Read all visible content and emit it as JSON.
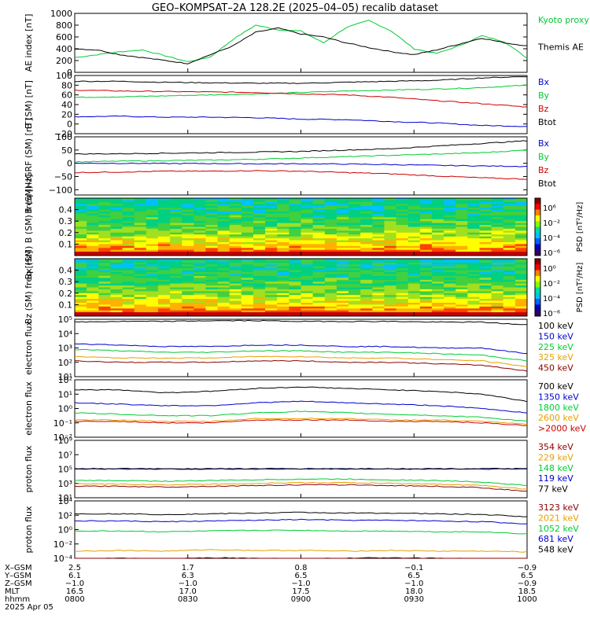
{
  "title": "GEO–KOMPSAT–2A 128.2E (2025–04–05) recalib dataset",
  "colors": {
    "black": "#000000",
    "blue": "#0000d0",
    "green": "#00cc33",
    "red": "#cc0000",
    "orange": "#e8a000",
    "darkred": "#8b0000"
  },
  "x_axis": {
    "row_labels": [
      "X–GSM",
      "Y–GSM",
      "Z–GSM",
      "MLT",
      "hhmm",
      "2025 Apr 05"
    ],
    "columns": [
      {
        "x_gsm": "2.5",
        "y_gsm": "6.1",
        "z_gsm": "−1.0",
        "mlt": "16.5",
        "hhmm": "0800"
      },
      {
        "x_gsm": "1.7",
        "y_gsm": "6.3",
        "z_gsm": "−1.0",
        "mlt": "17.0",
        "hhmm": "0830"
      },
      {
        "x_gsm": "0.8",
        "y_gsm": "6.5",
        "z_gsm": "−1.0",
        "mlt": "17.5",
        "hhmm": "0900"
      },
      {
        "x_gsm": "−0.1",
        "y_gsm": "6.5",
        "z_gsm": "−1.0",
        "mlt": "18.0",
        "hhmm": "0930"
      },
      {
        "x_gsm": "−0.9",
        "y_gsm": "6.5",
        "z_gsm": "−0.9",
        "mlt": "18.5",
        "hhmm": "1000"
      }
    ]
  },
  "chart_data": [
    {
      "type": "line",
      "ylabel": "AE index [nT]",
      "ylim": [
        0,
        1000
      ],
      "y_ticks": [
        0,
        200,
        400,
        600,
        800,
        1000
      ],
      "x": [
        0,
        0.05,
        0.1,
        0.15,
        0.2,
        0.25,
        0.3,
        0.35,
        0.4,
        0.45,
        0.5,
        0.55,
        0.6,
        0.65,
        0.7,
        0.75,
        0.8,
        0.85,
        0.9,
        0.95,
        1
      ],
      "series": [
        {
          "name": "Kyoto proxy AE",
          "color": "green",
          "values": [
            250,
            300,
            350,
            380,
            280,
            180,
            260,
            560,
            800,
            720,
            700,
            500,
            760,
            880,
            700,
            400,
            320,
            450,
            620,
            520,
            240
          ]
        },
        {
          "name": "Themis AE",
          "color": "black",
          "values": [
            400,
            380,
            300,
            250,
            200,
            150,
            300,
            450,
            680,
            750,
            650,
            600,
            500,
            420,
            350,
            300,
            380,
            480,
            580,
            500,
            450
          ]
        }
      ]
    },
    {
      "type": "line",
      "ylabel": "B (SM) [nT]",
      "ylim": [
        -20,
        100
      ],
      "y_ticks": [
        -20,
        0,
        20,
        40,
        60,
        80,
        100
      ],
      "x": [
        0,
        0.1,
        0.2,
        0.3,
        0.4,
        0.5,
        0.6,
        0.7,
        0.8,
        0.9,
        1
      ],
      "series": [
        {
          "name": "Bx",
          "color": "blue",
          "values": [
            15,
            16,
            14,
            14,
            13,
            10,
            9,
            5,
            2,
            -3,
            -5
          ]
        },
        {
          "name": "By",
          "color": "green",
          "values": [
            55,
            56,
            58,
            60,
            62,
            65,
            68,
            70,
            72,
            75,
            80
          ]
        },
        {
          "name": "Bz",
          "color": "red",
          "values": [
            70,
            68,
            67,
            66,
            65,
            62,
            60,
            55,
            48,
            42,
            35
          ]
        },
        {
          "name": "Btot",
          "color": "black",
          "values": [
            88,
            88,
            86,
            85,
            84,
            84,
            86,
            88,
            90,
            95,
            98
          ]
        }
      ]
    },
    {
      "type": "line",
      "ylabel": "B (SM)–IGRF (SM) [nT]",
      "ylim": [
        -120,
        100
      ],
      "y_ticks": [
        -100,
        -50,
        0,
        50,
        100
      ],
      "x": [
        0,
        0.1,
        0.2,
        0.3,
        0.4,
        0.5,
        0.6,
        0.7,
        0.8,
        0.9,
        1
      ],
      "series": [
        {
          "name": "Bx",
          "color": "blue",
          "values": [
            0,
            0,
            -1,
            -1,
            -2,
            -2,
            -3,
            -5,
            -8,
            -10,
            -12
          ]
        },
        {
          "name": "By",
          "color": "green",
          "values": [
            5,
            8,
            10,
            12,
            15,
            20,
            25,
            30,
            35,
            40,
            50
          ]
        },
        {
          "name": "Bz",
          "color": "red",
          "values": [
            -35,
            -33,
            -30,
            -30,
            -28,
            -30,
            -35,
            -40,
            -48,
            -55,
            -60
          ]
        },
        {
          "name": "Btot",
          "color": "black",
          "values": [
            35,
            36,
            38,
            40,
            42,
            45,
            50,
            55,
            65,
            75,
            85
          ]
        }
      ]
    },
    {
      "type": "heatmap",
      "ylabel": "Bx (SM) B (SM) freq [Hz]",
      "y_ticks": [
        0.1,
        0.2,
        0.3,
        0.4
      ],
      "ylim": [
        0,
        0.5
      ],
      "colorbar": {
        "label": "PSD [nT²/Hz]",
        "ticks": [
          "10⁶",
          "10⁻²",
          "10⁻⁴",
          "10⁻⁶"
        ]
      }
    },
    {
      "type": "heatmap",
      "ylabel": "Bz (SM) freq [Hz]",
      "y_ticks": [
        0.1,
        0.2,
        0.3,
        0.4
      ],
      "ylim": [
        0,
        0.5
      ],
      "colorbar": {
        "label": "PSD [nT²/Hz]",
        "ticks": [
          "10⁰",
          "10⁻²",
          "10⁻⁴",
          "10⁻⁶"
        ]
      }
    },
    {
      "type": "line",
      "ylabel": "electron flux",
      "y_log_exponents": [
        1,
        2,
        3,
        4,
        5
      ],
      "x": [
        0,
        0.1,
        0.2,
        0.3,
        0.4,
        0.5,
        0.6,
        0.7,
        0.8,
        0.9,
        1
      ],
      "series": [
        {
          "name": "100 keV",
          "color": "black",
          "log_values": [
            4.8,
            4.85,
            4.85,
            4.9,
            4.9,
            4.85,
            4.85,
            4.85,
            4.8,
            4.8,
            4.6
          ]
        },
        {
          "name": "150 keV",
          "color": "blue",
          "log_values": [
            3.3,
            3.2,
            3.1,
            3.1,
            3.2,
            3.2,
            3.1,
            3.1,
            3.0,
            3.0,
            2.6
          ]
        },
        {
          "name": "225 keV",
          "color": "green",
          "log_values": [
            2.9,
            2.8,
            2.7,
            2.7,
            2.8,
            2.8,
            2.7,
            2.7,
            2.6,
            2.5,
            2.1
          ]
        },
        {
          "name": "325 keV",
          "color": "orange",
          "log_values": [
            2.4,
            2.3,
            2.3,
            2.3,
            2.4,
            2.4,
            2.3,
            2.3,
            2.2,
            2.1,
            1.7
          ]
        },
        {
          "name": "450 keV",
          "color": "darkred",
          "log_values": [
            2.1,
            2.0,
            2.0,
            2.0,
            2.1,
            2.1,
            2.0,
            2.0,
            1.9,
            1.8,
            1.4
          ]
        }
      ]
    },
    {
      "type": "line",
      "ylabel": "electron flux",
      "y_log_exponents": [
        -2,
        -1,
        0,
        1,
        2
      ],
      "x": [
        0,
        0.1,
        0.2,
        0.3,
        0.4,
        0.5,
        0.6,
        0.7,
        0.8,
        0.9,
        1
      ],
      "series": [
        {
          "name": "700 keV",
          "color": "black",
          "log_values": [
            1.3,
            1.3,
            1.1,
            1.2,
            1.4,
            1.5,
            1.4,
            1.3,
            1.2,
            1.0,
            0.5
          ]
        },
        {
          "name": "1350 keV",
          "color": "blue",
          "log_values": [
            0.4,
            0.3,
            0.2,
            0.2,
            0.4,
            0.5,
            0.4,
            0.3,
            0.2,
            0.0,
            -0.3
          ]
        },
        {
          "name": "1800 keV",
          "color": "green",
          "log_values": [
            -0.3,
            -0.4,
            -0.5,
            -0.5,
            -0.3,
            -0.2,
            -0.3,
            -0.4,
            -0.5,
            -0.6,
            -0.9
          ]
        },
        {
          "name": "2600 keV",
          "color": "orange",
          "log_values": [
            -0.8,
            -0.8,
            -0.9,
            -0.9,
            -0.7,
            -0.7,
            -0.7,
            -0.8,
            -0.8,
            -0.9,
            -1.1
          ]
        },
        {
          "name": ">2000 keV",
          "color": "red",
          "log_values": [
            -0.9,
            -0.9,
            -1.0,
            -1.0,
            -0.8,
            -0.8,
            -0.8,
            -0.9,
            -0.9,
            -1.0,
            -1.2
          ]
        }
      ]
    },
    {
      "type": "line",
      "ylabel": "proton flux",
      "y_log_exponents": [
        1,
        3,
        5,
        7,
        9
      ],
      "x": [
        0,
        0.1,
        0.2,
        0.3,
        0.4,
        0.5,
        0.6,
        0.7,
        0.8,
        0.9,
        1
      ],
      "series": [
        {
          "name": "354 keV",
          "color": "darkred",
          "log_values": [
            2.6,
            2.6,
            2.5,
            2.6,
            2.7,
            2.8,
            2.8,
            2.7,
            2.6,
            2.4,
            1.9
          ]
        },
        {
          "name": "229 keV",
          "color": "orange",
          "log_values": [
            2.9,
            2.9,
            2.8,
            2.9,
            3.0,
            3.1,
            3.1,
            3.0,
            2.9,
            2.7,
            2.2
          ]
        },
        {
          "name": "148 keV",
          "color": "green",
          "log_values": [
            3.4,
            3.4,
            3.3,
            3.4,
            3.5,
            3.6,
            3.6,
            3.5,
            3.4,
            3.2,
            2.7
          ]
        },
        {
          "name": "119 keV",
          "color": "blue",
          "log_values": [
            5.0,
            5.0,
            5.0,
            5.0,
            5.0,
            5.0,
            5.0,
            5.0,
            5.0,
            5.0,
            5.0
          ]
        },
        {
          "name": "77 keV",
          "color": "black",
          "log_values": [
            5.05,
            5.05,
            5.05,
            5.05,
            5.05,
            5.05,
            5.05,
            5.05,
            5.05,
            5.05,
            5.05
          ]
        }
      ]
    },
    {
      "type": "line",
      "ylabel": "proton flux",
      "y_log_exponents": [
        -4,
        -2,
        0,
        2,
        4
      ],
      "x": [
        0,
        0.1,
        0.2,
        0.3,
        0.4,
        0.5,
        0.6,
        0.7,
        0.8,
        0.9,
        1
      ],
      "series": [
        {
          "name": "3123 keV",
          "color": "darkred",
          "log_values": [
            -4.1,
            -4.0,
            -4.1,
            -3.9,
            -4.0,
            -4.1,
            -4.0,
            -3.9,
            -4.0,
            -4.1,
            -4.2
          ]
        },
        {
          "name": "2021 keV",
          "color": "orange",
          "log_values": [
            -3.0,
            -2.9,
            -3.0,
            -2.8,
            -2.9,
            -2.9,
            -3.0,
            -2.9,
            -3.0,
            -3.0,
            -3.1
          ]
        },
        {
          "name": "1052 keV",
          "color": "green",
          "log_values": [
            -0.2,
            -0.2,
            -0.3,
            -0.2,
            -0.1,
            -0.1,
            -0.2,
            -0.2,
            -0.3,
            -0.3,
            -0.6
          ]
        },
        {
          "name": "681 keV",
          "color": "blue",
          "log_values": [
            1.2,
            1.2,
            1.1,
            1.2,
            1.3,
            1.4,
            1.3,
            1.3,
            1.2,
            1.1,
            0.8
          ]
        },
        {
          "name": "548 keV",
          "color": "black",
          "log_values": [
            2.2,
            2.2,
            2.1,
            2.2,
            2.3,
            2.4,
            2.3,
            2.3,
            2.2,
            2.1,
            1.8
          ]
        }
      ]
    }
  ]
}
